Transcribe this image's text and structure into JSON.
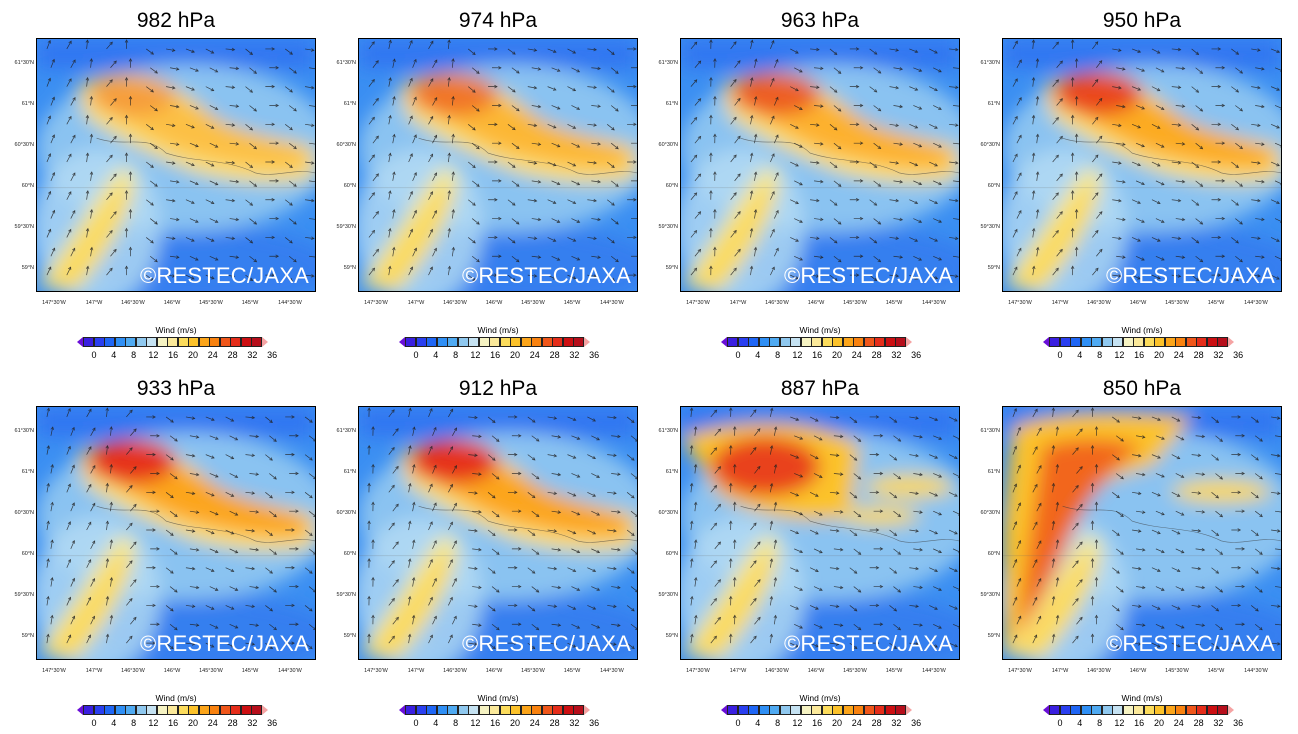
{
  "panels": [
    {
      "title": "982 hPa",
      "watermark": "©RESTEC/JAXA"
    },
    {
      "title": "974 hPa",
      "watermark": "©RESTEC/JAXA"
    },
    {
      "title": "963 hPa",
      "watermark": "©RESTEC/JAXA"
    },
    {
      "title": "950 hPa",
      "watermark": "©RESTEC/JAXA"
    },
    {
      "title": "933 hPa",
      "watermark": "©RESTEC/JAXA"
    },
    {
      "title": "912 hPa",
      "watermark": "©RESTEC/JAXA"
    },
    {
      "title": "887 hPa",
      "watermark": "©RESTEC/JAXA"
    },
    {
      "title": "850 hPa",
      "watermark": "©RESTEC/JAXA"
    }
  ],
  "map_axes": {
    "lat_labels": [
      "61°30'N",
      "61°N",
      "60°30'N",
      "60°N",
      "59°30'N",
      "59°N"
    ],
    "lon_labels": [
      "147°30'W",
      "147°W",
      "146°30'W",
      "146°W",
      "145°30'W",
      "145°W",
      "144°30'W"
    ]
  },
  "colorbar": {
    "title": "Wind  (m/s)",
    "ticks": [
      "0",
      "4",
      "8",
      "12",
      "16",
      "20",
      "24",
      "28",
      "32",
      "36"
    ],
    "colors": [
      "#6a0fd8",
      "#3a1fe0",
      "#2a3ff0",
      "#1f66f5",
      "#2f8ff5",
      "#4faaf2",
      "#8fc8ef",
      "#c5e2f2",
      "#f6f3c3",
      "#fbe99a",
      "#fcdc5c",
      "#fcc22a",
      "#fca51a",
      "#f9820f",
      "#f0561a",
      "#e52d1a",
      "#cc0f12",
      "#b60e1b",
      "#f5a3a3"
    ]
  }
}
